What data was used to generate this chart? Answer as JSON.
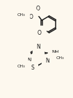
{
  "background_color": "#fdf8ee",
  "line_color": "#1a1a1a",
  "line_width": 1.1,
  "figsize": [
    1.05,
    1.41
  ],
  "dpi": 100,
  "xlim": [
    0,
    10.5
  ],
  "ylim": [
    0,
    14.1
  ]
}
